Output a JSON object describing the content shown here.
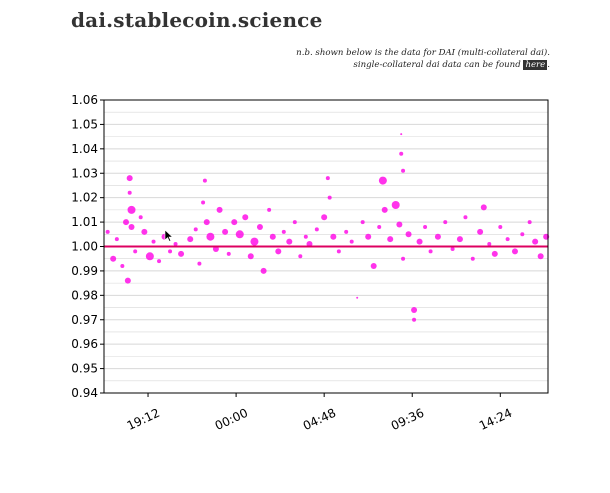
{
  "header": {
    "title": "dai.stablecoin.science",
    "note_line1": "n.b. shown below is the data for DAI (multi-collateral dai).",
    "note_line2_prefix": "single-collateral dai data can be found ",
    "note_link": "here",
    "note_line2_suffix": "."
  },
  "colors": {
    "points": "#ff00e6",
    "reference_line": "#dd0060",
    "grid": "#d8d8d8",
    "axis": "#000000"
  },
  "chart_data": {
    "type": "scatter",
    "title": "",
    "xlabel": "",
    "ylabel": "",
    "y_ticks": [
      "1.06",
      "1.05",
      "1.04",
      "1.03",
      "1.02",
      "1.01",
      "1.00",
      "0.99",
      "0.98",
      "0.97",
      "0.96",
      "0.95",
      "0.94"
    ],
    "ylim": [
      0.94,
      1.06
    ],
    "x_ticks": [
      "19:12",
      "00:00",
      "04:48",
      "09:36",
      "14:24"
    ],
    "x_tick_hours": [
      19.2,
      24.0,
      28.8,
      33.6,
      38.4
    ],
    "xlim_hours": [
      16.8,
      41.0
    ],
    "reference_value": 1.0,
    "grid": "horizontal",
    "points": [
      {
        "t": 17.0,
        "p": 1.006,
        "s": 2
      },
      {
        "t": 17.3,
        "p": 0.995,
        "s": 3
      },
      {
        "t": 17.5,
        "p": 1.003,
        "s": 2
      },
      {
        "t": 17.8,
        "p": 0.992,
        "s": 2
      },
      {
        "t": 18.0,
        "p": 1.01,
        "s": 3
      },
      {
        "t": 18.1,
        "p": 0.986,
        "s": 3
      },
      {
        "t": 18.2,
        "p": 1.028,
        "s": 3
      },
      {
        "t": 18.2,
        "p": 1.022,
        "s": 2
      },
      {
        "t": 18.3,
        "p": 1.015,
        "s": 4
      },
      {
        "t": 18.3,
        "p": 1.008,
        "s": 3
      },
      {
        "t": 18.5,
        "p": 0.998,
        "s": 2
      },
      {
        "t": 18.8,
        "p": 1.012,
        "s": 2
      },
      {
        "t": 19.0,
        "p": 1.006,
        "s": 3
      },
      {
        "t": 19.3,
        "p": 0.996,
        "s": 4
      },
      {
        "t": 19.5,
        "p": 1.002,
        "s": 2
      },
      {
        "t": 19.8,
        "p": 0.994,
        "s": 2
      },
      {
        "t": 20.1,
        "p": 1.004,
        "s": 3
      },
      {
        "t": 20.4,
        "p": 0.998,
        "s": 2
      },
      {
        "t": 20.7,
        "p": 1.001,
        "s": 2
      },
      {
        "t": 21.0,
        "p": 0.997,
        "s": 3
      },
      {
        "t": 21.5,
        "p": 1.003,
        "s": 3
      },
      {
        "t": 21.8,
        "p": 1.007,
        "s": 2
      },
      {
        "t": 22.0,
        "p": 0.993,
        "s": 2
      },
      {
        "t": 22.2,
        "p": 1.018,
        "s": 2
      },
      {
        "t": 22.3,
        "p": 1.027,
        "s": 2
      },
      {
        "t": 22.4,
        "p": 1.01,
        "s": 3
      },
      {
        "t": 22.6,
        "p": 1.004,
        "s": 4
      },
      {
        "t": 22.9,
        "p": 0.999,
        "s": 3
      },
      {
        "t": 23.1,
        "p": 1.015,
        "s": 3
      },
      {
        "t": 23.4,
        "p": 1.006,
        "s": 3
      },
      {
        "t": 23.6,
        "p": 0.997,
        "s": 2
      },
      {
        "t": 23.9,
        "p": 1.01,
        "s": 3
      },
      {
        "t": 24.2,
        "p": 1.005,
        "s": 4
      },
      {
        "t": 24.5,
        "p": 1.012,
        "s": 3
      },
      {
        "t": 24.8,
        "p": 0.996,
        "s": 3
      },
      {
        "t": 25.0,
        "p": 1.002,
        "s": 4
      },
      {
        "t": 25.3,
        "p": 1.008,
        "s": 3
      },
      {
        "t": 25.5,
        "p": 0.99,
        "s": 3
      },
      {
        "t": 25.8,
        "p": 1.015,
        "s": 2
      },
      {
        "t": 26.0,
        "p": 1.004,
        "s": 3
      },
      {
        "t": 26.3,
        "p": 0.998,
        "s": 3
      },
      {
        "t": 26.6,
        "p": 1.006,
        "s": 2
      },
      {
        "t": 26.9,
        "p": 1.002,
        "s": 3
      },
      {
        "t": 27.2,
        "p": 1.01,
        "s": 2
      },
      {
        "t": 27.5,
        "p": 0.996,
        "s": 2
      },
      {
        "t": 27.8,
        "p": 1.004,
        "s": 2
      },
      {
        "t": 28.0,
        "p": 1.001,
        "s": 3
      },
      {
        "t": 28.4,
        "p": 1.007,
        "s": 2
      },
      {
        "t": 28.8,
        "p": 1.012,
        "s": 3
      },
      {
        "t": 29.0,
        "p": 1.028,
        "s": 2
      },
      {
        "t": 29.1,
        "p": 1.02,
        "s": 2
      },
      {
        "t": 29.3,
        "p": 1.004,
        "s": 3
      },
      {
        "t": 29.6,
        "p": 0.998,
        "s": 2
      },
      {
        "t": 30.0,
        "p": 1.006,
        "s": 2
      },
      {
        "t": 30.3,
        "p": 1.002,
        "s": 2
      },
      {
        "t": 30.6,
        "p": 0.979,
        "s": 1
      },
      {
        "t": 30.9,
        "p": 1.01,
        "s": 2
      },
      {
        "t": 31.2,
        "p": 1.004,
        "s": 3
      },
      {
        "t": 31.5,
        "p": 0.992,
        "s": 3
      },
      {
        "t": 31.8,
        "p": 1.008,
        "s": 2
      },
      {
        "t": 32.0,
        "p": 1.027,
        "s": 4
      },
      {
        "t": 32.1,
        "p": 1.015,
        "s": 3
      },
      {
        "t": 32.4,
        "p": 1.003,
        "s": 3
      },
      {
        "t": 32.7,
        "p": 1.017,
        "s": 4
      },
      {
        "t": 32.9,
        "p": 1.009,
        "s": 3
      },
      {
        "t": 33.0,
        "p": 1.046,
        "s": 1
      },
      {
        "t": 33.0,
        "p": 1.038,
        "s": 2
      },
      {
        "t": 33.1,
        "p": 1.031,
        "s": 2
      },
      {
        "t": 33.1,
        "p": 0.995,
        "s": 2
      },
      {
        "t": 33.4,
        "p": 1.005,
        "s": 3
      },
      {
        "t": 33.7,
        "p": 0.974,
        "s": 3
      },
      {
        "t": 33.7,
        "p": 0.97,
        "s": 2
      },
      {
        "t": 34.0,
        "p": 1.002,
        "s": 3
      },
      {
        "t": 34.3,
        "p": 1.008,
        "s": 2
      },
      {
        "t": 34.6,
        "p": 0.998,
        "s": 2
      },
      {
        "t": 35.0,
        "p": 1.004,
        "s": 3
      },
      {
        "t": 35.4,
        "p": 1.01,
        "s": 2
      },
      {
        "t": 35.8,
        "p": 0.999,
        "s": 2
      },
      {
        "t": 36.2,
        "p": 1.003,
        "s": 3
      },
      {
        "t": 36.5,
        "p": 1.012,
        "s": 2
      },
      {
        "t": 36.9,
        "p": 0.995,
        "s": 2
      },
      {
        "t": 37.3,
        "p": 1.006,
        "s": 3
      },
      {
        "t": 37.5,
        "p": 1.016,
        "s": 3
      },
      {
        "t": 37.8,
        "p": 1.001,
        "s": 2
      },
      {
        "t": 38.1,
        "p": 0.997,
        "s": 3
      },
      {
        "t": 38.4,
        "p": 1.008,
        "s": 2
      },
      {
        "t": 38.8,
        "p": 1.003,
        "s": 2
      },
      {
        "t": 39.2,
        "p": 0.998,
        "s": 3
      },
      {
        "t": 39.6,
        "p": 1.005,
        "s": 2
      },
      {
        "t": 40.0,
        "p": 1.01,
        "s": 2
      },
      {
        "t": 40.3,
        "p": 1.002,
        "s": 3
      },
      {
        "t": 40.6,
        "p": 0.996,
        "s": 3
      },
      {
        "t": 40.9,
        "p": 1.004,
        "s": 3
      }
    ]
  }
}
